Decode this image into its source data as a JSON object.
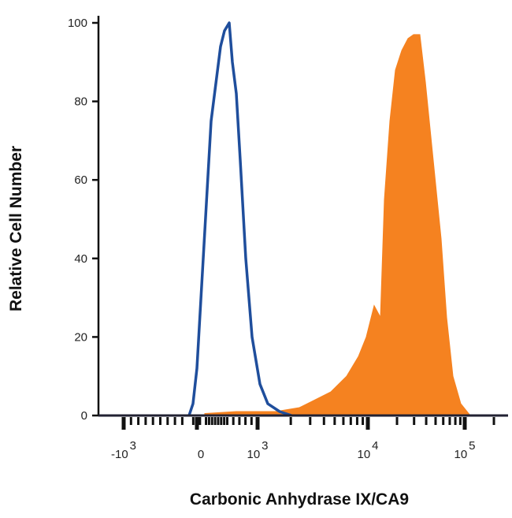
{
  "chart_data": {
    "type": "area",
    "title": "",
    "xlabel": "Carbonic Anhydrase IX/CA9",
    "ylabel": "Relative Cell Number",
    "x_scale": "biexponential",
    "ylim": [
      0,
      100
    ],
    "yticks": [
      0,
      20,
      40,
      60,
      80,
      100
    ],
    "xticks": [
      {
        "value": -1000,
        "base": "-10",
        "exp": "3"
      },
      {
        "value": 0,
        "base": "0",
        "exp": ""
      },
      {
        "value": 1000,
        "base": "10",
        "exp": "3"
      },
      {
        "value": 10000,
        "base": "10",
        "exp": "4"
      },
      {
        "value": 100000,
        "base": "10",
        "exp": "5"
      }
    ],
    "grid": false,
    "series": [
      {
        "style": "outline",
        "color": "#1f4e9c",
        "x": [
          -108,
          -54,
          0,
          104,
          234,
          390,
          455,
          532,
          584,
          649,
          714,
          805,
          909,
          1050,
          1239,
          1585,
          2028
        ],
        "y": [
          0,
          3,
          12,
          40,
          75,
          94,
          98,
          100,
          90,
          82,
          65,
          40,
          20,
          8,
          3,
          1,
          0
        ]
      },
      {
        "style": "filled",
        "color": "#f58220",
        "x": [
          130,
          649,
          1460,
          2393,
          3321,
          4611,
          6412,
          8210,
          9680,
          11620,
          13490,
          14820,
          16890,
          19270,
          22400,
          26000,
          29650,
          34430,
          39200,
          47290,
          57020,
          65030,
          75500,
          91000,
          114000
        ],
        "y": [
          0.5,
          1,
          1,
          2,
          4,
          6,
          10,
          15,
          20,
          28,
          25,
          55,
          75,
          88,
          93,
          96,
          97,
          97,
          85,
          65,
          45,
          25,
          10,
          3,
          0
        ]
      }
    ]
  }
}
